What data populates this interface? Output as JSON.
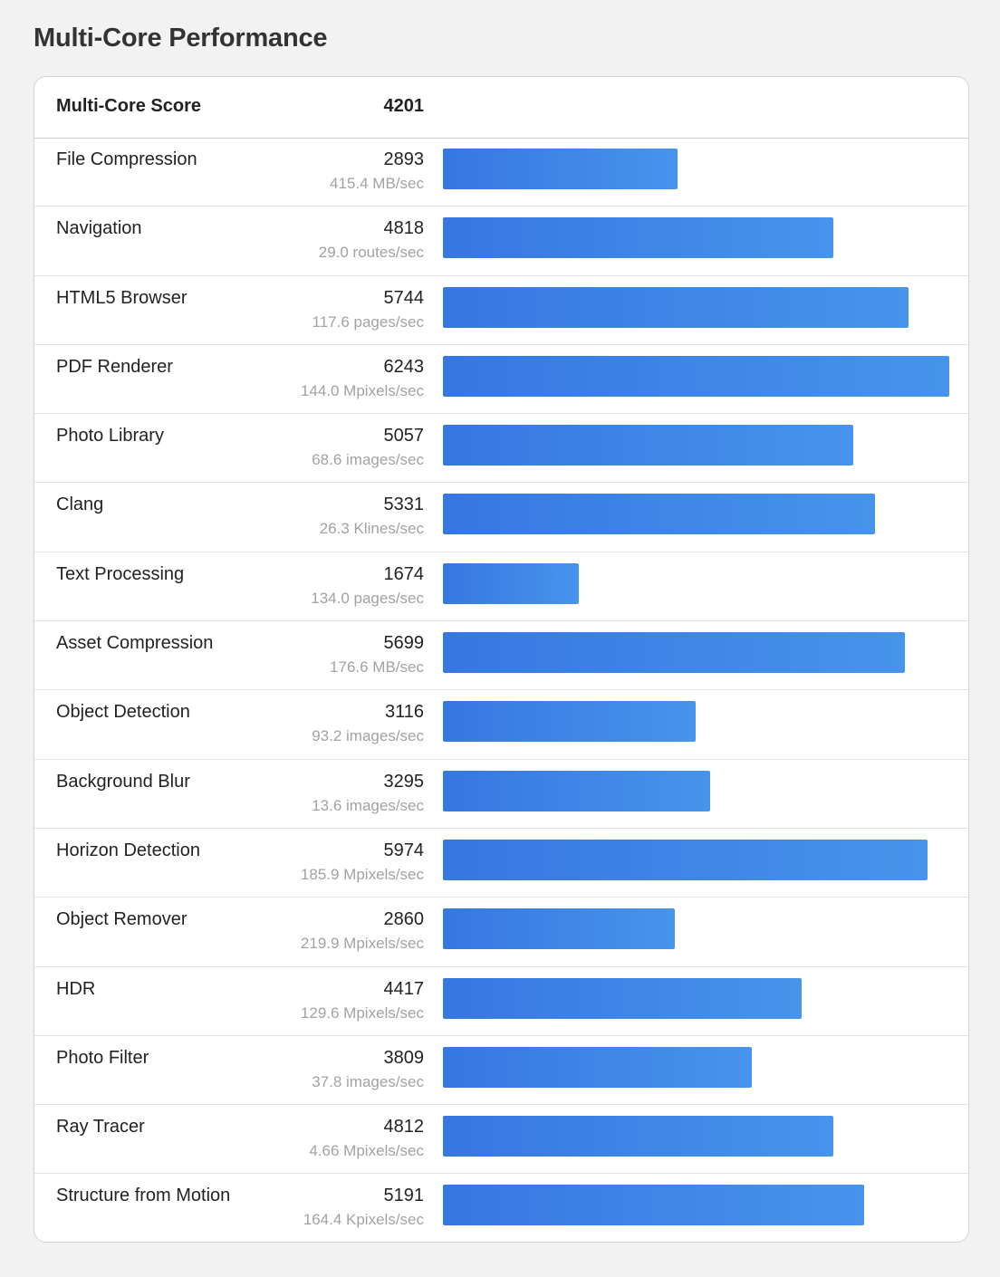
{
  "page": {
    "title": "Multi-Core Performance"
  },
  "summary": {
    "label": "Multi-Core Score",
    "value": "4201"
  },
  "chart_data": {
    "type": "bar",
    "orientation": "horizontal",
    "xlim": [
      0,
      6243
    ],
    "grid": false,
    "categories": [
      "File Compression",
      "Navigation",
      "HTML5 Browser",
      "PDF Renderer",
      "Photo Library",
      "Clang",
      "Text Processing",
      "Asset Compression",
      "Object Detection",
      "Background Blur",
      "Horizon Detection",
      "Object Remover",
      "HDR",
      "Photo Filter",
      "Ray Tracer",
      "Structure from Motion"
    ],
    "values": [
      2893,
      4818,
      5744,
      6243,
      5057,
      5331,
      1674,
      5699,
      3116,
      3295,
      5974,
      2860,
      4417,
      3809,
      4812,
      5191
    ],
    "rates": [
      "415.4 MB/sec",
      "29.0 routes/sec",
      "117.6 pages/sec",
      "144.0 Mpixels/sec",
      "68.6 images/sec",
      "26.3 Klines/sec",
      "134.0 pages/sec",
      "176.6 MB/sec",
      "93.2 images/sec",
      "13.6 images/sec",
      "185.9 Mpixels/sec",
      "219.9 Mpixels/sec",
      "129.6 Mpixels/sec",
      "37.8 images/sec",
      "4.66 Mpixels/sec",
      "164.4 Kpixels/sec"
    ],
    "bar_color_start": "#3677e2",
    "bar_color_end": "#4794ec"
  }
}
